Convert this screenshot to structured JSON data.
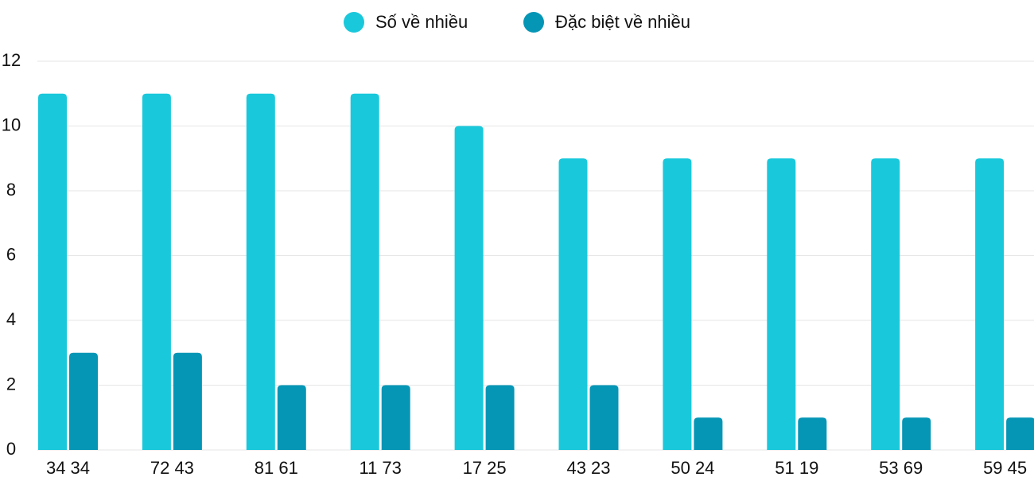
{
  "chart_data": {
    "type": "bar",
    "categories": [
      "34 34",
      "72 43",
      "81 61",
      "11 73",
      "17 25",
      "43 23",
      "50 24",
      "51 19",
      "53 69",
      "59 45"
    ],
    "series": [
      {
        "name": "Số về nhiều",
        "color": "#1ac8db",
        "values": [
          11,
          11,
          11,
          11,
          10,
          9,
          9,
          9,
          9,
          9
        ]
      },
      {
        "name": "Đặc biệt về nhiều",
        "color": "#0596b6",
        "values": [
          3,
          3,
          2,
          2,
          2,
          2,
          1,
          1,
          1,
          1
        ]
      }
    ],
    "ylim": [
      0,
      12
    ],
    "yticks": [
      0,
      2,
      4,
      6,
      8,
      10,
      12
    ],
    "grid": true,
    "legend": "top"
  }
}
